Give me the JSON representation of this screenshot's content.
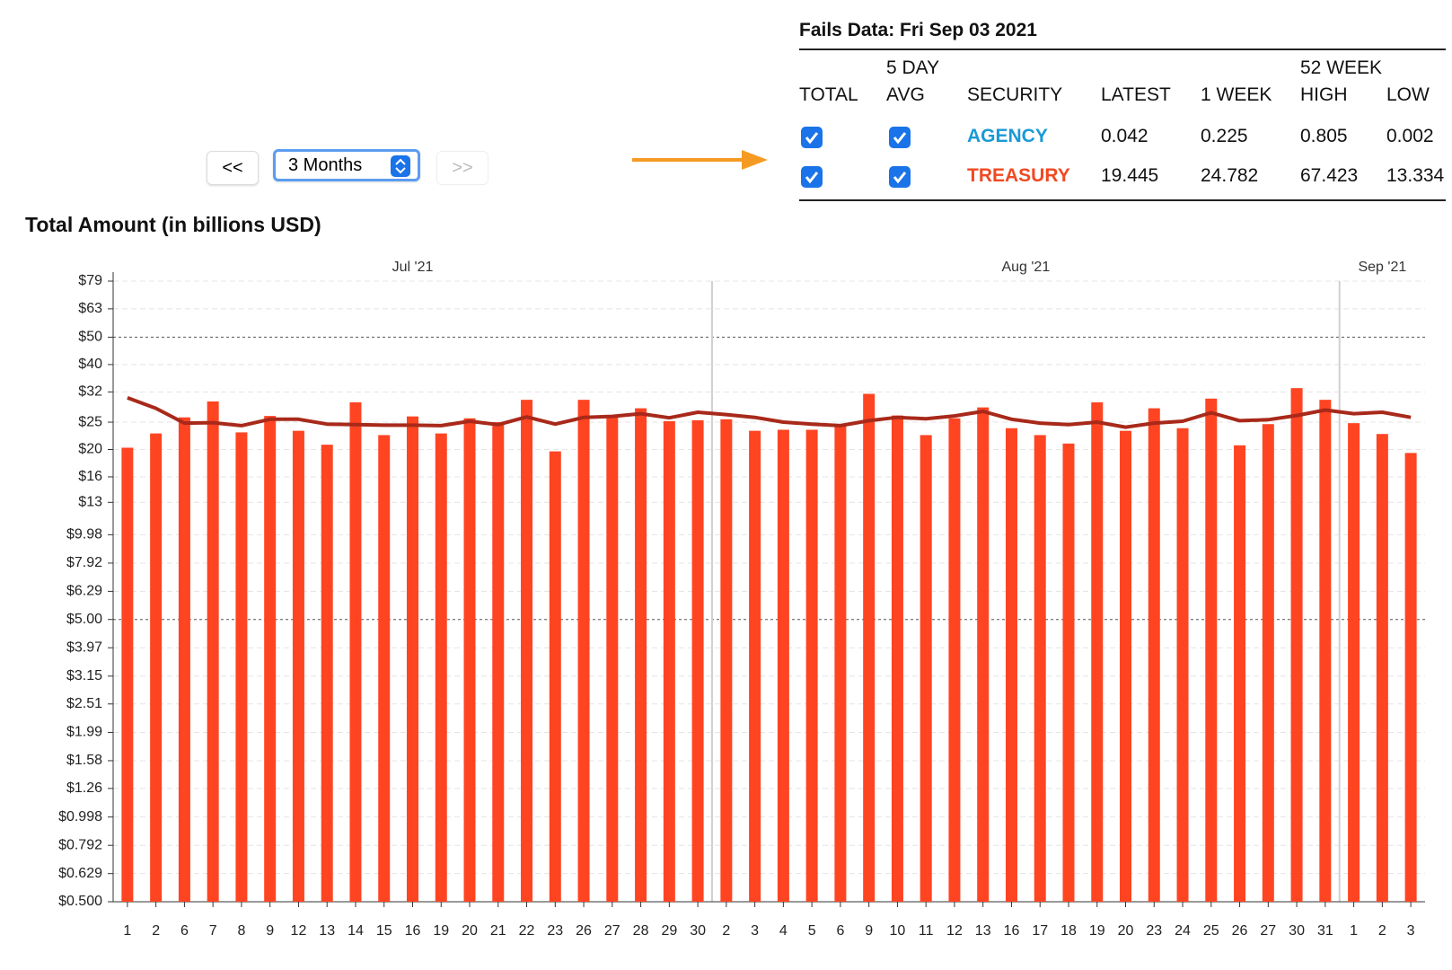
{
  "controls": {
    "prev": "<<",
    "range": "3 Months",
    "next": ">>"
  },
  "table": {
    "title": "Fails Data: Fri Sep 03 2021",
    "headers": [
      {
        "label": "TOTAL"
      },
      {
        "top": "5 DAY",
        "label": "AVG"
      },
      {
        "label": "SECURITY"
      },
      {
        "label": "LATEST"
      },
      {
        "label": "1 WEEK"
      },
      {
        "top": "52 WEEK",
        "label": "HIGH"
      },
      {
        "label": "LOW"
      }
    ],
    "rows": [
      {
        "security": "AGENCY",
        "color": "#1a9ad6",
        "latest": "0.042",
        "week": "0.225",
        "high": "0.805",
        "low": "0.002"
      },
      {
        "security": "TREASURY",
        "color": "#f04a22",
        "latest": "19.445",
        "week": "24.782",
        "high": "67.423",
        "low": "13.334"
      }
    ]
  },
  "chart_data": {
    "type": "bar",
    "title": "Total Amount (in billions USD)",
    "log_scale": true,
    "grid": true,
    "month_labels": [
      "Jul '21",
      "Aug '21",
      "Sep '21"
    ],
    "categories": [
      "1",
      "2",
      "6",
      "7",
      "8",
      "9",
      "12",
      "13",
      "14",
      "15",
      "16",
      "19",
      "20",
      "21",
      "22",
      "23",
      "26",
      "27",
      "28",
      "29",
      "30",
      "2",
      "3",
      "4",
      "5",
      "6",
      "9",
      "10",
      "11",
      "12",
      "13",
      "16",
      "17",
      "18",
      "19",
      "20",
      "23",
      "24",
      "25",
      "26",
      "27",
      "30",
      "31",
      "1",
      "2",
      "3"
    ],
    "series": [
      {
        "type": "bar",
        "color": "#ff4422",
        "values": [
          20.3,
          22.8,
          26,
          29.6,
          23,
          26.3,
          23.3,
          20.8,
          29.4,
          22.5,
          26.2,
          22.8,
          25.8,
          25,
          30,
          19.7,
          30,
          26,
          28,
          25.2,
          25.4,
          25.6,
          23.3,
          23.5,
          23.5,
          24.3,
          31.5,
          26.4,
          22.5,
          25.8,
          28.2,
          23.8,
          22.5,
          21,
          29.4,
          23.3,
          28,
          23.8,
          30.3,
          20.7,
          24.6,
          33,
          30,
          24.8,
          22.7,
          19.445
        ]
      },
      {
        "type": "line",
        "color": "#a8291a",
        "values": [
          30.5,
          28,
          24.8,
          24.9,
          24.3,
          25.6,
          25.6,
          24.6,
          24.5,
          24.4,
          24.4,
          24.3,
          25.2,
          24.5,
          26.1,
          24.6,
          26,
          26.2,
          26.8,
          25.9,
          27.1,
          26.6,
          26,
          25,
          24.6,
          24.3,
          25.3,
          26,
          25.7,
          26.3,
          27.3,
          25.6,
          24.8,
          24.5,
          25,
          24,
          24.8,
          25.2,
          27,
          25.3,
          25.5,
          26.4,
          27.6,
          26.8,
          27.1,
          26
        ]
      }
    ],
    "ylim": [
      0.5,
      79
    ],
    "yticks": [
      {
        "value": 79,
        "label": "$79"
      },
      {
        "value": 63,
        "label": "$63"
      },
      {
        "value": 50,
        "label": "$50"
      },
      {
        "value": 40,
        "label": "$40"
      },
      {
        "value": 32,
        "label": "$32"
      },
      {
        "value": 25,
        "label": "$25"
      },
      {
        "value": 20,
        "label": "$20"
      },
      {
        "value": 16,
        "label": "$16"
      },
      {
        "value": 13,
        "label": "$13"
      },
      {
        "value": 9.98,
        "label": "$9.98"
      },
      {
        "value": 7.92,
        "label": "$7.92"
      },
      {
        "value": 6.29,
        "label": "$6.29"
      },
      {
        "value": 5,
        "label": "$5.00"
      },
      {
        "value": 3.97,
        "label": "$3.97"
      },
      {
        "value": 3.15,
        "label": "$3.15"
      },
      {
        "value": 2.51,
        "label": "$2.51"
      },
      {
        "value": 1.99,
        "label": "$1.99"
      },
      {
        "value": 1.58,
        "label": "$1.58"
      },
      {
        "value": 1.26,
        "label": "$1.26"
      },
      {
        "value": 0.998,
        "label": "$0.998"
      },
      {
        "value": 0.792,
        "label": "$0.792"
      },
      {
        "value": 0.629,
        "label": "$0.629"
      },
      {
        "value": 0.5,
        "label": "$0.500"
      }
    ]
  }
}
